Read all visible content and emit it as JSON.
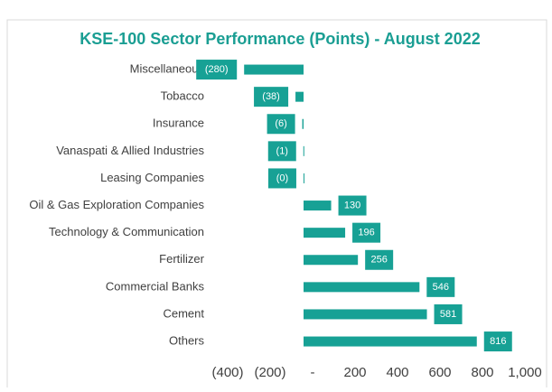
{
  "chart_data": {
    "type": "hbar",
    "title": "KSE-100 Sector Performance (Points) - August 2022",
    "categories": [
      "Miscellaneous",
      "Tobacco",
      "Insurance",
      "Vanaspati & Allied Industries",
      "Leasing Companies",
      "Oil & Gas Exploration Companies",
      "Technology & Communication",
      "Fertilizer",
      "Commercial Banks",
      "Cement",
      "Others"
    ],
    "values": [
      -280,
      -38,
      -6,
      -1,
      -0.2,
      130,
      196,
      256,
      546,
      581,
      816
    ],
    "value_labels": [
      "(280)",
      "(38)",
      "(6)",
      "(1)",
      "(0)",
      "130",
      "196",
      "256",
      "546",
      "581",
      "816"
    ],
    "color": "#17a195",
    "xlim": [
      -400,
      1000
    ],
    "xticks": [
      {
        "value": -400,
        "label": "(400)"
      },
      {
        "value": -200,
        "label": "(200)"
      },
      {
        "value": 0,
        "label": "-"
      },
      200,
      400,
      600,
      800,
      {
        "value": 1000,
        "label": "1,000"
      }
    ],
    "grid": false
  }
}
